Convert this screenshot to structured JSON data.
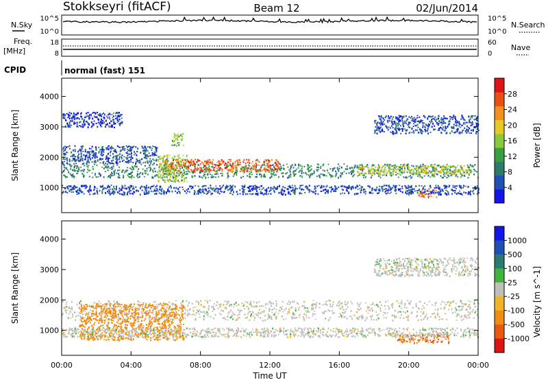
{
  "header": {
    "station": "Stokkseyri (fitACF)",
    "beam": "Beam 12",
    "date": "02/Jun/2014"
  },
  "noise_panel": {
    "left_label": "N.Sky",
    "left_ticks": [
      "10^5",
      "10^0"
    ],
    "right_label": "N.Search",
    "right_ticks": [
      "10^5",
      "10^0"
    ]
  },
  "freq_panel": {
    "left_label_1": "Freq.",
    "left_label_2": "[MHz]",
    "left_ticks": [
      "18",
      "8"
    ],
    "right_label": "Nave",
    "right_ticks": [
      "60",
      "0"
    ]
  },
  "cpid": {
    "label": "CPID",
    "value": "normal (fast) 151"
  },
  "colors": {
    "power_scale": [
      "#1414e6",
      "#2050b4",
      "#2e7a6e",
      "#38a040",
      "#8cc83c",
      "#e6c828",
      "#f0901e",
      "#e85014",
      "#dc1414"
    ],
    "velocity_scale": [
      "#1414e6",
      "#2050b4",
      "#2e7a6e",
      "#40b440",
      "#c0c0b8",
      "#f0b428",
      "#f08c14",
      "#e85a10",
      "#dc1414"
    ]
  },
  "chart_data": [
    {
      "type": "heatmap",
      "name": "power",
      "xlabel": "",
      "ylabel": "Slant Range [km]",
      "x_range_hours": [
        0,
        24
      ],
      "ylim": [
        180,
        4600
      ],
      "y_ticks": [
        "1000",
        "2000",
        "3000",
        "4000"
      ],
      "y_tick_values": [
        1000,
        2000,
        3000,
        4000
      ],
      "colorbar_label": "Power [dB]",
      "colorbar_ticks": [
        "4",
        "8",
        "12",
        "16",
        "20",
        "24",
        "28"
      ],
      "colorbar_range": [
        0,
        32
      ],
      "features": [
        {
          "t": [
            0.0,
            24.0
          ],
          "range_km": [
            1350,
            1800
          ],
          "power_db": 10,
          "note_ref": "main band"
        },
        {
          "t": [
            5.8,
            12.5
          ],
          "range_km": [
            1550,
            1950
          ],
          "power_db": 26
        },
        {
          "t": [
            17.0,
            23.5
          ],
          "range_km": [
            1450,
            1750
          ],
          "power_db": 18
        },
        {
          "t": [
            5.5,
            7.2
          ],
          "range_km": [
            1200,
            2100
          ],
          "power_db": 16
        },
        {
          "t": [
            6.3,
            7.0
          ],
          "range_km": [
            2400,
            2800
          ],
          "power_db": 16
        },
        {
          "t": [
            20.5,
            21.6
          ],
          "range_km": [
            700,
            950
          ],
          "power_db": 24
        },
        {
          "t": [
            0.0,
            5.5
          ],
          "range_km": [
            1800,
            2400
          ],
          "power_db": 6
        },
        {
          "t": [
            0.0,
            24.0
          ],
          "range_km": [
            800,
            1100
          ],
          "power_db": 5
        },
        {
          "t": [
            0.0,
            3.5
          ],
          "range_km": [
            3000,
            3500
          ],
          "power_db": 4
        },
        {
          "t": [
            18.0,
            24.0
          ],
          "range_km": [
            2800,
            3400
          ],
          "power_db": 5
        }
      ]
    },
    {
      "type": "heatmap",
      "name": "velocity",
      "xlabel": "Time UT",
      "ylabel": "Slant Range [km]",
      "x_range_hours": [
        0,
        24
      ],
      "x_ticks": [
        "00:00",
        "04:00",
        "08:00",
        "12:00",
        "16:00",
        "20:00",
        "00:00"
      ],
      "ylim": [
        180,
        4600
      ],
      "y_ticks": [
        "1000",
        "2000",
        "3000",
        "4000"
      ],
      "y_tick_values": [
        1000,
        2000,
        3000,
        4000
      ],
      "colorbar_label": "Velocity [m s^-1]",
      "colorbar_ticks": [
        "1000",
        "500",
        "100",
        "25",
        "-25",
        "-100",
        "-500",
        "-1000"
      ],
      "features": [
        {
          "t": [
            0.0,
            24.0
          ],
          "range_km": [
            1350,
            2000
          ],
          "velocity_ms": 0
        },
        {
          "t": [
            1.0,
            7.0
          ],
          "range_km": [
            700,
            1900
          ],
          "velocity_ms": -300
        },
        {
          "t": [
            19.3,
            22.3
          ],
          "range_km": [
            600,
            900
          ],
          "velocity_ms": -500
        },
        {
          "t": [
            0.0,
            24.0
          ],
          "range_km": [
            800,
            1100
          ],
          "velocity_ms": 0
        },
        {
          "t": [
            18.0,
            24.0
          ],
          "range_km": [
            2800,
            3400
          ],
          "velocity_ms": 0
        }
      ]
    }
  ]
}
